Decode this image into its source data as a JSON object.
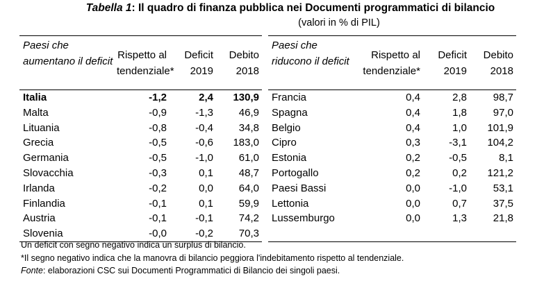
{
  "title": {
    "label": "Tabella 1",
    "text": ": Il quadro di finanza pubblica nei Documenti programmatici di bilancio"
  },
  "subtitle": "(valori in % di PIL)",
  "left_table": {
    "headers": [
      "Paesi che aumentano il deficit",
      "Rispetto al tendenziale*",
      "Deficit 2019",
      "Debito 2018"
    ],
    "rows": [
      [
        "Italia",
        "-1,2",
        "2,4",
        "130,9"
      ],
      [
        "Malta",
        "-0,9",
        "-1,3",
        "46,9"
      ],
      [
        "Lituania",
        "-0,8",
        "-0,4",
        "34,8"
      ],
      [
        "Grecia",
        "-0,5",
        "-0,6",
        "183,0"
      ],
      [
        "Germania",
        "-0,5",
        "-1,0",
        "61,0"
      ],
      [
        "Slovacchia",
        "-0,3",
        "0,1",
        "48,7"
      ],
      [
        "Irlanda",
        "-0,2",
        "0,0",
        "64,0"
      ],
      [
        "Finlandia",
        "-0,1",
        "0,1",
        "59,9"
      ],
      [
        "Austria",
        "-0,1",
        "-0,1",
        "74,2"
      ],
      [
        "Slovenia",
        "-0,0",
        "-0,2",
        "70,3"
      ]
    ]
  },
  "right_table": {
    "headers": [
      "Paesi che riducono il deficit",
      "Rispetto al tendenziale*",
      "Deficit 2019",
      "Debito 2018"
    ],
    "rows": [
      [
        "Francia",
        "0,4",
        "2,8",
        "98,7"
      ],
      [
        "Spagna",
        "0,4",
        "1,8",
        "97,0"
      ],
      [
        "Belgio",
        "0,4",
        "1,0",
        "101,9"
      ],
      [
        "Cipro",
        "0,3",
        "-3,1",
        "104,2"
      ],
      [
        "Estonia",
        "0,2",
        "-0,5",
        "8,1"
      ],
      [
        "Portogallo",
        "0,2",
        "0,2",
        "121,2"
      ],
      [
        "Paesi Bassi",
        "0,0",
        "-1,0",
        "53,1"
      ],
      [
        "Lettonia",
        "0,0",
        "0,7",
        "37,5"
      ],
      [
        "Lussemburgo",
        "0,0",
        "1,3",
        "21,8"
      ]
    ]
  },
  "notes": {
    "note1": "Un deficit con segno negativo indica un surplus di bilancio.",
    "note2": "*Il segno negativo indica che la manovra di bilancio peggiora l'indebitamento rispetto al tendenziale.",
    "source_label": "Fonte",
    "source_text": ": elaborazioni CSC sui Documenti Programmatici di Bilancio dei singoli paesi."
  }
}
